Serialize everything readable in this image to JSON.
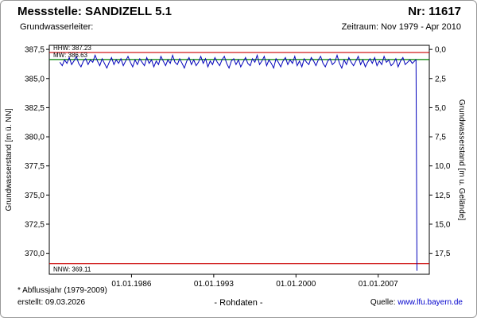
{
  "header": {
    "station_label": "Messstelle: SANDIZELL 5.1",
    "number_label": "Nr: 11617",
    "aquifer_label": "Grundwasserleiter:",
    "period_label": "Zeitraum: Nov 1979 - Apr 2010"
  },
  "footer": {
    "note": "* Abflussjahr (1979-2009)",
    "created": "erstellt: 09.03.2026",
    "center": "- Rohdaten -",
    "source_label": "Quelle:",
    "source_link": "www.lfu.bayern.de"
  },
  "colors": {
    "series": "#0000bb",
    "extreme_line": "#cc0000",
    "mean_line": "#008000",
    "link": "#0000cc",
    "axis": "#000000"
  },
  "chart_data": {
    "type": "line",
    "title": "",
    "ylabel_left": "Grundwasserstand [m ü. NN]",
    "ylabel_right": "Grundwasserstand [m u. Gelände]",
    "xlim": [
      1979.0,
      2011.35
    ],
    "ylim_left": [
      368.2,
      387.85
    ],
    "ground_level": 387.5,
    "grid": false,
    "x_ticks": [
      {
        "x": 1986.0,
        "label": "01.01.1986"
      },
      {
        "x": 1993.0,
        "label": "01.01.1993"
      },
      {
        "x": 2000.0,
        "label": "01.01.2000"
      },
      {
        "x": 2007.0,
        "label": "01.01.2007"
      }
    ],
    "y_ticks_left": [
      {
        "v": 387.5,
        "label": "387,5"
      },
      {
        "v": 385.0,
        "label": "385,0"
      },
      {
        "v": 382.5,
        "label": "382,5"
      },
      {
        "v": 380.0,
        "label": "380,0"
      },
      {
        "v": 377.5,
        "label": "377,5"
      },
      {
        "v": 375.0,
        "label": "375,0"
      },
      {
        "v": 372.5,
        "label": "372,5"
      },
      {
        "v": 370.0,
        "label": "370,0"
      }
    ],
    "y_ticks_right": [
      {
        "v": 0.0,
        "label": "0,0"
      },
      {
        "v": 2.5,
        "label": "2,5"
      },
      {
        "v": 5.0,
        "label": "5,0"
      },
      {
        "v": 7.5,
        "label": "7,5"
      },
      {
        "v": 10.0,
        "label": "10,0"
      },
      {
        "v": 12.5,
        "label": "12,5"
      },
      {
        "v": 15.0,
        "label": "15,0"
      },
      {
        "v": 17.5,
        "label": "17,5"
      }
    ],
    "reference_lines": [
      {
        "name": "HHW",
        "value": 387.23,
        "color": "#cc0000",
        "label": "HHW: 387.23",
        "label_pos": "above"
      },
      {
        "name": "MW",
        "value": 386.63,
        "color": "#008000",
        "label": "MW: 386.63",
        "label_pos": "above"
      },
      {
        "name": "NNW",
        "value": 369.11,
        "color": "#cc0000",
        "label": "NNW: 369.11",
        "label_pos": "below"
      }
    ],
    "series": [
      {
        "name": "Grundwasserstand Rohdaten",
        "color": "#0000bb",
        "x_start": 1979.9,
        "x_step": 0.2,
        "values": [
          386.4,
          386.1,
          386.6,
          386.3,
          386.8,
          386.2,
          386.5,
          386.9,
          386.3,
          386.0,
          386.5,
          386.7,
          386.2,
          386.6,
          386.4,
          387.0,
          386.5,
          386.1,
          386.7,
          386.3,
          385.9,
          386.4,
          386.8,
          386.2,
          386.6,
          386.3,
          386.7,
          386.1,
          386.5,
          386.9,
          386.4,
          386.0,
          386.6,
          386.2,
          386.7,
          386.4,
          386.1,
          386.8,
          386.3,
          386.6,
          386.0,
          386.5,
          386.2,
          386.9,
          386.5,
          386.1,
          386.6,
          386.3,
          387.0,
          386.4,
          386.2,
          386.7,
          386.3,
          385.9,
          386.5,
          386.8,
          386.2,
          386.6,
          386.1,
          386.4,
          386.9,
          386.3,
          386.7,
          386.0,
          386.5,
          386.2,
          386.8,
          386.4,
          386.1,
          386.6,
          386.9,
          386.3,
          385.9,
          386.5,
          386.7,
          386.2,
          386.6,
          386.0,
          386.4,
          386.8,
          386.3,
          386.1,
          386.7,
          386.4,
          387.0,
          386.2,
          386.5,
          386.9,
          386.1,
          386.6,
          386.3,
          385.9,
          386.7,
          386.4,
          386.0,
          386.5,
          386.8,
          386.2,
          386.6,
          386.3,
          386.9,
          386.1,
          386.5,
          386.0,
          386.7,
          386.4,
          386.2,
          386.8,
          386.5,
          386.1,
          386.6,
          386.9,
          386.3,
          386.0,
          386.5,
          386.7,
          386.2,
          386.4,
          387.0,
          386.3,
          385.9,
          386.6,
          386.2,
          386.8,
          386.4,
          386.1,
          386.5,
          386.9,
          386.2,
          386.6,
          386.0,
          386.4,
          386.7,
          386.3,
          386.8,
          386.1,
          386.5,
          386.2,
          386.9,
          386.4,
          386.6,
          386.1,
          386.3,
          386.7,
          386.0,
          386.5,
          386.8,
          386.2,
          386.4,
          386.6,
          386.3,
          386.5
        ],
        "tail": [
          [
            2010.22,
            386.6
          ],
          [
            2010.3,
            368.5
          ]
        ]
      }
    ]
  }
}
